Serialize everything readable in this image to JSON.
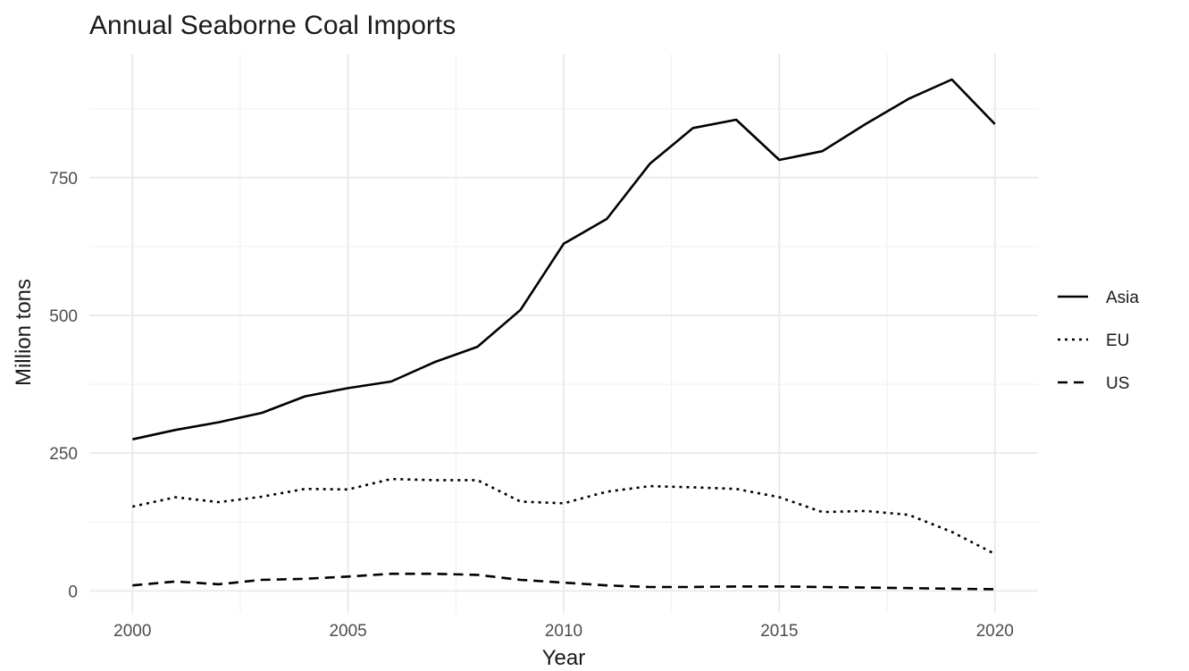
{
  "chart_data": {
    "type": "line",
    "title": "Annual Seaborne Coal Imports",
    "xlabel": "Year",
    "ylabel": "Million tons",
    "x": [
      2000,
      2001,
      2002,
      2003,
      2004,
      2005,
      2006,
      2007,
      2008,
      2009,
      2010,
      2011,
      2012,
      2013,
      2014,
      2015,
      2016,
      2017,
      2018,
      2019,
      2020
    ],
    "xlim": [
      1999,
      2021
    ],
    "ylim": [
      -40,
      975
    ],
    "x_ticks": [
      2000,
      2005,
      2010,
      2015,
      2020
    ],
    "x_tick_labels": [
      "2000",
      "2005",
      "2010",
      "2015",
      "2020"
    ],
    "y_ticks": [
      0,
      250,
      500,
      750
    ],
    "y_tick_labels": [
      "0",
      "250",
      "500",
      "750"
    ],
    "grid": true,
    "legend_position": "right",
    "series": [
      {
        "name": "Asia",
        "linestyle": "solid",
        "color": "#000000",
        "values": [
          275,
          292,
          306,
          323,
          353,
          368,
          380,
          415,
          443,
          510,
          630,
          675,
          775,
          840,
          855,
          782,
          798,
          847,
          893,
          928,
          847
        ]
      },
      {
        "name": "EU",
        "linestyle": "dotted",
        "color": "#000000",
        "values": [
          153,
          170,
          161,
          171,
          185,
          184,
          203,
          201,
          201,
          162,
          159,
          180,
          190,
          188,
          185,
          170,
          143,
          145,
          138,
          107,
          67
        ]
      },
      {
        "name": "US",
        "linestyle": "dashed",
        "color": "#000000",
        "values": [
          10,
          17,
          12,
          20,
          22,
          26,
          31,
          31,
          29,
          20,
          15,
          10,
          7,
          7,
          8,
          8,
          7,
          6,
          5,
          4,
          3
        ]
      }
    ]
  }
}
